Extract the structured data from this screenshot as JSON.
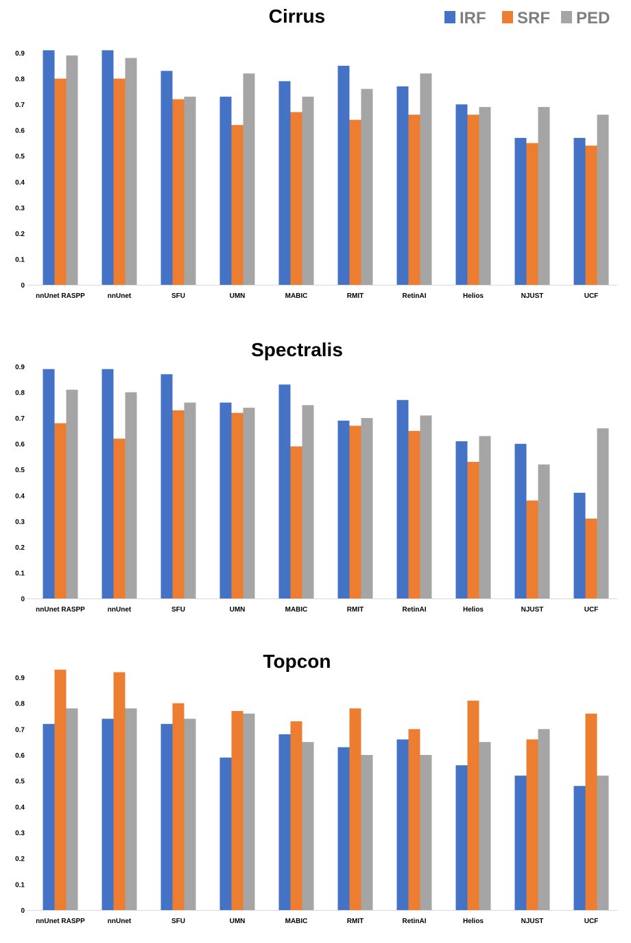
{
  "legend": [
    {
      "label": "IRF",
      "color": "#4472c4"
    },
    {
      "label": "SRF",
      "color": "#ed7d31"
    },
    {
      "label": "PED",
      "color": "#a5a5a5"
    }
  ],
  "legend_text_color": "#7f7f7f",
  "chart_data": [
    {
      "type": "bar",
      "title": "Cirrus",
      "categories": [
        "nnUnet RASPP",
        "nnUnet",
        "SFU",
        "UMN",
        "MABIC",
        "RMIT",
        "RetinAI",
        "Helios",
        "NJUST",
        "UCF"
      ],
      "ylim": [
        0,
        0.9
      ],
      "yticks": [
        "0",
        "0.1",
        "0.2",
        "0.3",
        "0.4",
        "0.5",
        "0.6",
        "0.7",
        "0.8",
        "0.9"
      ],
      "xlabel": "",
      "ylabel": "",
      "series": [
        {
          "name": "IRF",
          "values": [
            0.91,
            0.91,
            0.83,
            0.73,
            0.79,
            0.85,
            0.77,
            0.7,
            0.57,
            0.57
          ]
        },
        {
          "name": "SRF",
          "values": [
            0.8,
            0.8,
            0.72,
            0.62,
            0.67,
            0.64,
            0.66,
            0.66,
            0.55,
            0.54
          ]
        },
        {
          "name": "PED",
          "values": [
            0.89,
            0.88,
            0.73,
            0.82,
            0.73,
            0.76,
            0.82,
            0.69,
            0.69,
            0.66
          ]
        }
      ]
    },
    {
      "type": "bar",
      "title": "Spectralis",
      "categories": [
        "nnUnet RASPP",
        "nnUnet",
        "SFU",
        "UMN",
        "MABIC",
        "RMIT",
        "RetinAI",
        "Helios",
        "NJUST",
        "UCF"
      ],
      "ylim": [
        0,
        0.9
      ],
      "yticks": [
        "0",
        "0.1",
        "0.2",
        "0.3",
        "0.4",
        "0.5",
        "0.6",
        "0.7",
        "0.8",
        "0.9"
      ],
      "xlabel": "",
      "ylabel": "",
      "series": [
        {
          "name": "IRF",
          "values": [
            0.89,
            0.89,
            0.87,
            0.76,
            0.83,
            0.69,
            0.77,
            0.61,
            0.6,
            0.41
          ]
        },
        {
          "name": "SRF",
          "values": [
            0.68,
            0.62,
            0.73,
            0.72,
            0.59,
            0.67,
            0.65,
            0.53,
            0.38,
            0.31
          ]
        },
        {
          "name": "PED",
          "values": [
            0.81,
            0.8,
            0.76,
            0.74,
            0.75,
            0.7,
            0.71,
            0.63,
            0.52,
            0.66
          ]
        }
      ]
    },
    {
      "type": "bar",
      "title": "Topcon",
      "categories": [
        "nnUnet RASPP",
        "nnUnet",
        "SFU",
        "UMN",
        "MABIC",
        "RMIT",
        "RetinAI",
        "Helios",
        "NJUST",
        "UCF"
      ],
      "ylim": [
        0,
        0.9
      ],
      "yticks": [
        "0",
        "0.1",
        "0.2",
        "0.3",
        "0.4",
        "0.5",
        "0.6",
        "0.7",
        "0.8",
        "0.9"
      ],
      "xlabel": "",
      "ylabel": "",
      "series": [
        {
          "name": "IRF",
          "values": [
            0.72,
            0.74,
            0.72,
            0.59,
            0.68,
            0.63,
            0.66,
            0.56,
            0.52,
            0.48
          ]
        },
        {
          "name": "SRF",
          "values": [
            0.93,
            0.92,
            0.8,
            0.77,
            0.73,
            0.78,
            0.7,
            0.81,
            0.66,
            0.76
          ]
        },
        {
          "name": "PED",
          "values": [
            0.78,
            0.78,
            0.74,
            0.76,
            0.65,
            0.6,
            0.6,
            0.65,
            0.7,
            0.52
          ]
        }
      ]
    }
  ]
}
